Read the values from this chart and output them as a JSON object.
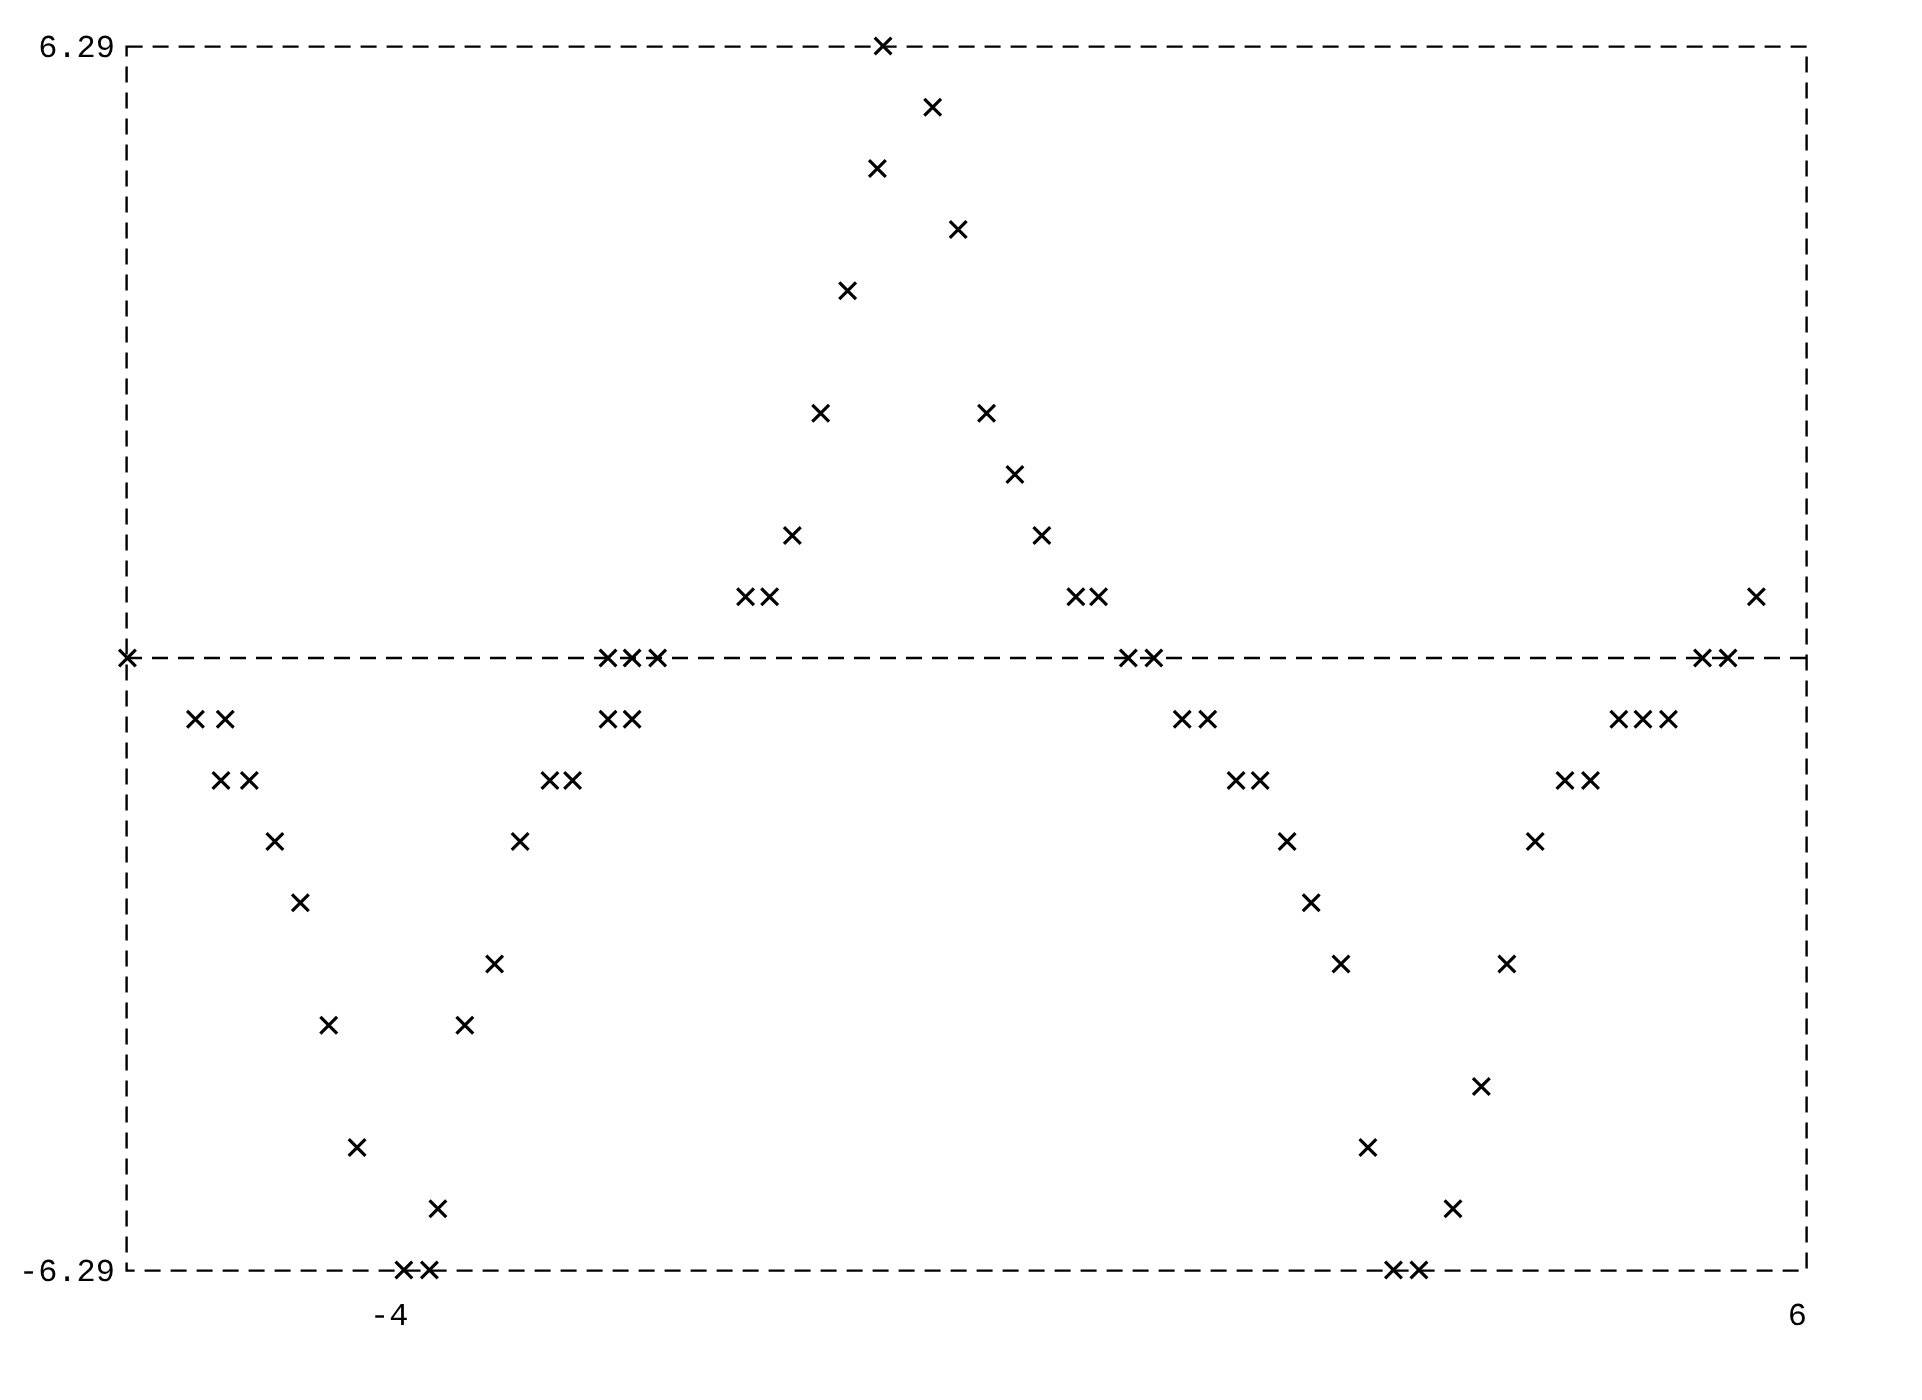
{
  "chart_data": {
    "type": "scatter",
    "marker": "cross",
    "grid": false,
    "x": [
      -0.51,
      -0.16,
      -0.55,
      0.02,
      -0.76,
      -0.95,
      0.22,
      0.42,
      -1.15,
      0.61,
      -1.48,
      -1.31,
      0.85,
      1.01,
      5.65,
      -5.84,
      -2.45,
      -2.28,
      -2.1,
      1.22,
      1.4,
      5.27,
      5.45,
      -5.36,
      -5.15,
      -2.45,
      -2.28,
      1.6,
      1.78,
      4.68,
      4.85,
      5.03,
      -5.18,
      -4.98,
      -2.86,
      -2.7,
      1.98,
      2.15,
      4.3,
      4.48,
      -4.8,
      -3.07,
      2.34,
      4.09,
      -4.62,
      2.51,
      -3.25,
      2.72,
      3.89,
      -4.42,
      -3.46,
      3.71,
      -4.22,
      2.91,
      -3.65,
      3.51,
      -3.89,
      -3.71,
      3.09,
      3.27
    ],
    "series": [
      {
        "color": "#000000",
        "values": [
          6.29,
          5.661,
          5.032,
          4.403,
          3.774,
          2.516,
          2.516,
          1.887,
          1.258,
          1.258,
          0.629,
          0.629,
          0.629,
          0.629,
          0.629,
          0,
          0,
          0,
          0,
          0,
          0,
          0,
          0,
          -0.629,
          -0.629,
          -0.629,
          -0.629,
          -0.629,
          -0.629,
          -0.629,
          -0.629,
          -0.629,
          -1.258,
          -1.258,
          -1.258,
          -1.258,
          -1.258,
          -1.258,
          -1.258,
          -1.258,
          -1.887,
          -1.887,
          -1.887,
          -1.887,
          -2.516,
          -2.516,
          -3.145,
          -3.145,
          -3.145,
          -3.774,
          -3.774,
          -4.403,
          -5.032,
          -5.032,
          -5.661,
          -5.661,
          -6.29,
          -6.29,
          -6.29,
          -6.29
        ]
      }
    ],
    "xlim": [
      -5.85,
      6
    ],
    "xticks": [
      -4,
      6
    ],
    "ylim": [
      -6.29,
      6.29
    ],
    "yticks": [
      6.29,
      -6.29
    ],
    "ref_lines": [
      {
        "axis": "y",
        "value": 0,
        "line_style": "dashed"
      }
    ]
  }
}
